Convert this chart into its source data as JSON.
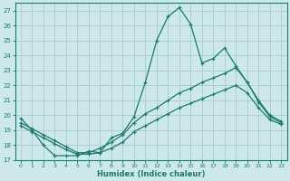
{
  "xlabel": "Humidex (Indice chaleur)",
  "background_color": "#cce8ea",
  "grid_color": "#aacccc",
  "line_color": "#1a7a6e",
  "xlim": [
    -0.5,
    23.5
  ],
  "ylim": [
    17,
    27.5
  ],
  "xticks": [
    0,
    1,
    2,
    3,
    4,
    5,
    6,
    7,
    8,
    9,
    10,
    11,
    12,
    13,
    14,
    15,
    16,
    17,
    18,
    19,
    20,
    21,
    22,
    23
  ],
  "yticks": [
    17,
    18,
    19,
    20,
    21,
    22,
    23,
    24,
    25,
    26,
    27
  ],
  "line_main": [
    19.8,
    19.0,
    18.0,
    17.3,
    17.3,
    17.3,
    17.6,
    17.5,
    18.5,
    18.8,
    19.9,
    22.2,
    25.0,
    26.6,
    27.2,
    26.1,
    23.5,
    23.8,
    24.5,
    23.3,
    22.2,
    20.9,
    19.9,
    19.5
  ],
  "line_upper": [
    19.5,
    19.1,
    18.7,
    18.3,
    17.9,
    17.5,
    17.5,
    17.8,
    18.2,
    18.7,
    19.5,
    20.1,
    20.5,
    21.0,
    21.5,
    21.8,
    22.2,
    22.5,
    22.8,
    23.2,
    22.2,
    21.0,
    20.0,
    19.6
  ],
  "line_lower": [
    19.3,
    18.9,
    18.5,
    18.1,
    17.7,
    17.4,
    17.4,
    17.5,
    17.8,
    18.2,
    18.9,
    19.3,
    19.7,
    20.1,
    20.5,
    20.8,
    21.1,
    21.4,
    21.7,
    22.0,
    21.5,
    20.5,
    19.7,
    19.4
  ]
}
